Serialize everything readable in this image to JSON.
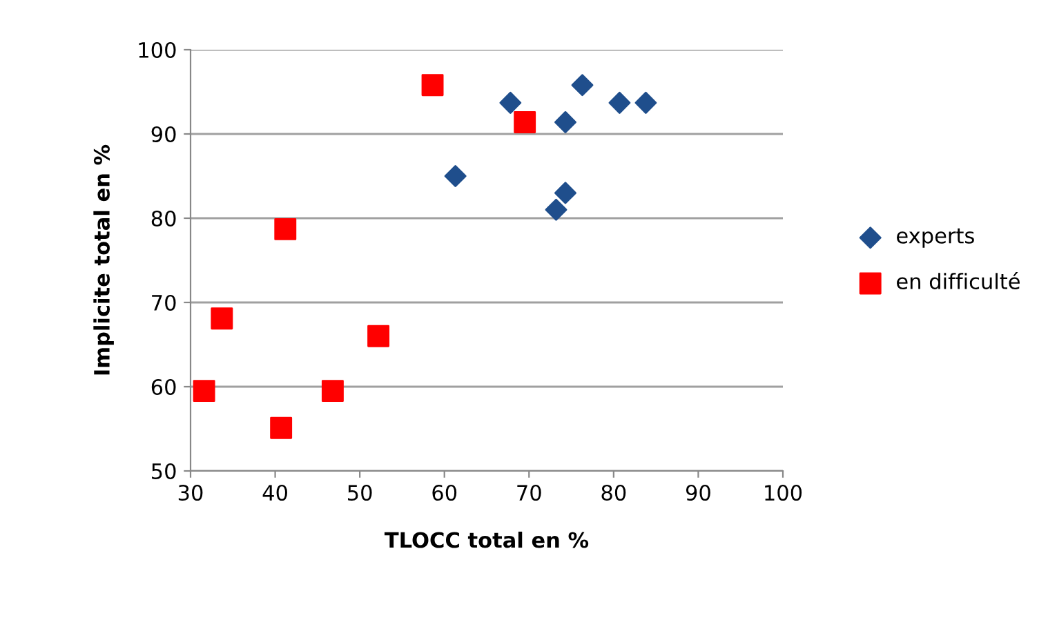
{
  "chart_data": {
    "type": "scatter",
    "xlabel": "TLOCC total en %",
    "ylabel": "Implicite total en %",
    "xlim": [
      30,
      100
    ],
    "xticks": [
      30,
      40,
      50,
      60,
      70,
      80,
      90,
      100
    ],
    "ylim": [
      50,
      100
    ],
    "yticks": [
      50,
      60,
      70,
      80,
      90,
      100
    ],
    "grid": "y",
    "legend": "right",
    "series": [
      {
        "name": "experts",
        "color": "#1f4e8c",
        "marker": "diamond",
        "x": [
          61.3,
          67.8,
          76.3,
          74.3,
          80.7,
          83.8,
          74.3,
          73.2
        ],
        "values": [
          85.0,
          93.7,
          95.8,
          91.4,
          93.7,
          93.7,
          83.0,
          81.0
        ]
      },
      {
        "name": "en difficulté",
        "color": "#ff0000",
        "marker": "square",
        "x": [
          31.6,
          33.7,
          41.2,
          40.7,
          46.8,
          52.2,
          58.6,
          69.5
        ],
        "values": [
          59.5,
          68.1,
          78.7,
          55.1,
          59.5,
          66.0,
          95.8,
          91.4
        ]
      }
    ]
  }
}
